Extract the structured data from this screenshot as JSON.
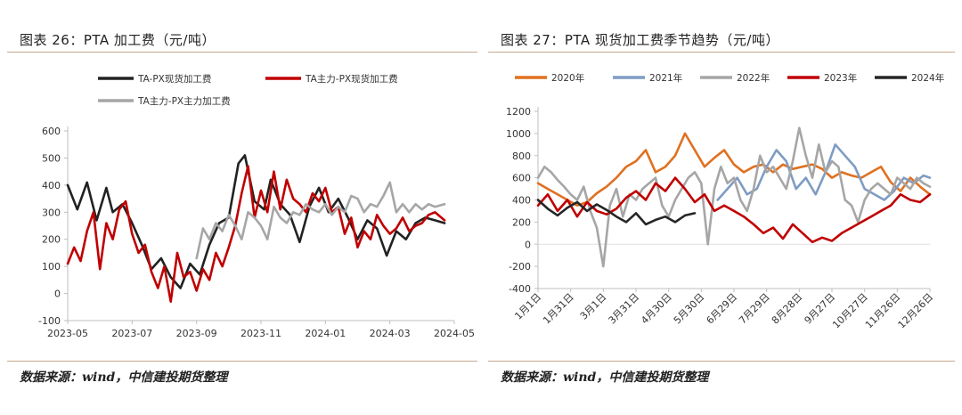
{
  "figures": [
    {
      "title": "图表 26：PTA 加工费（元/吨）",
      "source": "数据来源：wind，中信建投期货整理"
    },
    {
      "title": "图表 27：PTA 现货加工费季节趋势（元/吨）",
      "source": "数据来源：wind，中信建投期货整理"
    }
  ],
  "chart_data": [
    {
      "type": "line",
      "title": "图表 26：PTA 加工费（元/吨）",
      "xlabel": "",
      "ylabel": "",
      "x_tick_labels": [
        "2023-05",
        "2023-07",
        "2023-09",
        "2023-11",
        "2024-01",
        "2024-03",
        "2024-05"
      ],
      "y_ticks": [
        -100,
        0,
        100,
        200,
        300,
        400,
        500,
        600
      ],
      "ylim": [
        -100,
        600
      ],
      "xlim": [
        0,
        12
      ],
      "grid": false,
      "legend": "top",
      "series": [
        {
          "name": "TA-PX现货加工费",
          "color": "#222222",
          "x": [
            0.0,
            0.3,
            0.6,
            0.9,
            1.2,
            1.4,
            1.7,
            2.0,
            2.3,
            2.6,
            2.9,
            3.2,
            3.5,
            3.8,
            4.1,
            4.4,
            4.7,
            5.0,
            5.3,
            5.5,
            5.8,
            6.1,
            6.3,
            6.6,
            6.9,
            7.2,
            7.5,
            7.8,
            8.1,
            8.4,
            8.7,
            9.0,
            9.3,
            9.6,
            9.9,
            10.2,
            10.5,
            10.8,
            11.1,
            11.4,
            11.7
          ],
          "y": [
            400,
            310,
            410,
            270,
            390,
            300,
            330,
            260,
            180,
            90,
            130,
            60,
            20,
            110,
            70,
            180,
            260,
            280,
            480,
            510,
            340,
            310,
            420,
            330,
            290,
            190,
            320,
            390,
            300,
            350,
            280,
            200,
            270,
            240,
            140,
            230,
            200,
            260,
            280,
            270,
            260
          ]
        },
        {
          "name": "TA主力-PX现货加工费",
          "color": "#c00000",
          "x": [
            0.0,
            0.2,
            0.4,
            0.6,
            0.8,
            1.0,
            1.2,
            1.4,
            1.6,
            1.8,
            2.0,
            2.2,
            2.4,
            2.6,
            2.8,
            3.0,
            3.2,
            3.4,
            3.6,
            3.8,
            4.0,
            4.2,
            4.4,
            4.6,
            4.8,
            5.0,
            5.2,
            5.4,
            5.6,
            5.8,
            6.0,
            6.2,
            6.4,
            6.6,
            6.8,
            7.0,
            7.2,
            7.4,
            7.6,
            7.8,
            8.0,
            8.2,
            8.4,
            8.6,
            8.8,
            9.0,
            9.2,
            9.4,
            9.6,
            9.8,
            10.0,
            10.2,
            10.4,
            10.6,
            10.8,
            11.0,
            11.2,
            11.4,
            11.7
          ],
          "y": [
            110,
            170,
            120,
            230,
            300,
            90,
            260,
            200,
            310,
            340,
            220,
            150,
            180,
            80,
            20,
            100,
            -30,
            150,
            60,
            80,
            10,
            90,
            50,
            150,
            100,
            170,
            250,
            370,
            470,
            280,
            380,
            300,
            450,
            310,
            420,
            350,
            330,
            300,
            370,
            340,
            390,
            300,
            320,
            220,
            280,
            170,
            230,
            200,
            290,
            250,
            220,
            240,
            280,
            230,
            250,
            260,
            290,
            300,
            270
          ]
        },
        {
          "name": "TA主力-PX主力加工费",
          "color": "#a6a6a6",
          "x": [
            4.0,
            4.2,
            4.4,
            4.6,
            4.8,
            5.0,
            5.2,
            5.4,
            5.6,
            5.8,
            6.0,
            6.2,
            6.4,
            6.6,
            6.8,
            7.0,
            7.2,
            7.4,
            7.6,
            7.8,
            8.0,
            8.2,
            8.4,
            8.6,
            8.8,
            9.0,
            9.2,
            9.4,
            9.6,
            9.8,
            10.0,
            10.2,
            10.4,
            10.6,
            10.8,
            11.0,
            11.2,
            11.4,
            11.7
          ],
          "y": [
            130,
            240,
            200,
            260,
            230,
            290,
            250,
            200,
            300,
            280,
            250,
            200,
            320,
            280,
            260,
            300,
            290,
            330,
            310,
            300,
            330,
            290,
            320,
            300,
            360,
            350,
            300,
            330,
            320,
            360,
            410,
            300,
            330,
            300,
            330,
            310,
            330,
            320,
            330
          ]
        }
      ]
    },
    {
      "type": "line",
      "title": "图表 27：PTA 现货加工费季节趋势（元/吨）",
      "xlabel": "",
      "ylabel": "",
      "x_tick_labels": [
        "1月1日",
        "1月31日",
        "3月1日",
        "3月31日",
        "4月30日",
        "5月30日",
        "6月29日",
        "7月29日",
        "8月28日",
        "9月27日",
        "10月27日",
        "11月26日",
        "12月26日"
      ],
      "y_ticks": [
        -400,
        -200,
        0,
        200,
        400,
        600,
        800,
        1000,
        1200
      ],
      "ylim": [
        -400,
        1200
      ],
      "xlim": [
        0,
        12
      ],
      "grid": false,
      "legend": "top",
      "series": [
        {
          "name": "2020年",
          "color": "#e07020",
          "x": [
            0.0,
            0.3,
            0.6,
            0.9,
            1.2,
            1.5,
            1.8,
            2.1,
            2.4,
            2.7,
            3.0,
            3.3,
            3.6,
            3.9,
            4.2,
            4.5,
            4.8,
            5.1,
            5.4,
            5.7,
            6.0,
            6.3,
            6.6,
            6.9,
            7.2,
            7.5,
            7.8,
            8.1,
            8.4,
            8.7,
            9.0,
            9.3,
            9.6,
            9.9,
            10.2,
            10.5,
            10.8,
            11.1,
            11.4,
            11.7,
            12.0
          ],
          "y": [
            550,
            500,
            450,
            400,
            350,
            380,
            460,
            520,
            600,
            700,
            750,
            850,
            650,
            700,
            800,
            1000,
            850,
            700,
            780,
            850,
            720,
            650,
            700,
            720,
            650,
            720,
            680,
            700,
            720,
            680,
            600,
            650,
            620,
            600,
            650,
            700,
            560,
            480,
            600,
            520,
            450
          ]
        },
        {
          "name": "2021年",
          "color": "#7f9cc3",
          "x": [
            5.5,
            5.8,
            6.1,
            6.4,
            6.7,
            7.0,
            7.3,
            7.6,
            7.9,
            8.2,
            8.5,
            8.8,
            9.1,
            9.4,
            9.7,
            10.0,
            10.3,
            10.6,
            10.9,
            11.2,
            11.5,
            11.8,
            12.0
          ],
          "y": [
            400,
            500,
            600,
            450,
            500,
            700,
            850,
            750,
            500,
            600,
            450,
            650,
            900,
            800,
            700,
            500,
            450,
            400,
            480,
            600,
            550,
            620,
            600
          ]
        },
        {
          "name": "2022年",
          "color": "#a6a6a6",
          "x": [
            0.0,
            0.2,
            0.4,
            0.6,
            0.8,
            1.0,
            1.2,
            1.4,
            1.6,
            1.8,
            2.0,
            2.2,
            2.4,
            2.6,
            2.8,
            3.0,
            3.2,
            3.4,
            3.6,
            3.8,
            4.0,
            4.2,
            4.4,
            4.6,
            4.8,
            5.0,
            5.2,
            5.4,
            5.6,
            5.8,
            6.0,
            6.2,
            6.4,
            6.6,
            6.8,
            7.0,
            7.2,
            7.4,
            7.6,
            7.8,
            8.0,
            8.2,
            8.4,
            8.6,
            8.8,
            9.0,
            9.2,
            9.4,
            9.6,
            9.8,
            10.0,
            10.2,
            10.4,
            10.6,
            10.8,
            11.0,
            11.2,
            11.4,
            11.6,
            11.8,
            12.0
          ],
          "y": [
            600,
            700,
            650,
            580,
            520,
            450,
            400,
            520,
            300,
            150,
            -200,
            350,
            500,
            250,
            450,
            400,
            500,
            550,
            600,
            350,
            250,
            400,
            500,
            600,
            650,
            550,
            0,
            500,
            700,
            550,
            600,
            400,
            300,
            500,
            800,
            650,
            700,
            600,
            500,
            750,
            1050,
            800,
            600,
            900,
            650,
            750,
            700,
            400,
            350,
            200,
            400,
            500,
            550,
            500,
            450,
            600,
            550,
            500,
            600,
            550,
            520
          ]
        },
        {
          "name": "2023年",
          "color": "#c00000",
          "x": [
            0.0,
            0.3,
            0.6,
            0.9,
            1.2,
            1.5,
            1.8,
            2.1,
            2.4,
            2.7,
            3.0,
            3.3,
            3.6,
            3.9,
            4.2,
            4.5,
            4.8,
            5.1,
            5.4,
            5.7,
            6.0,
            6.3,
            6.6,
            6.9,
            7.2,
            7.5,
            7.8,
            8.1,
            8.4,
            8.7,
            9.0,
            9.3,
            9.6,
            9.9,
            10.2,
            10.5,
            10.8,
            11.1,
            11.4,
            11.7,
            12.0
          ],
          "y": [
            350,
            450,
            300,
            400,
            250,
            380,
            300,
            270,
            320,
            420,
            480,
            400,
            550,
            480,
            600,
            500,
            380,
            450,
            300,
            350,
            300,
            250,
            180,
            100,
            150,
            50,
            180,
            100,
            20,
            60,
            30,
            100,
            150,
            200,
            250,
            300,
            350,
            450,
            400,
            380,
            450
          ]
        },
        {
          "name": "2024年",
          "color": "#262626",
          "x": [
            0.0,
            0.3,
            0.6,
            0.9,
            1.2,
            1.5,
            1.8,
            2.1,
            2.4,
            2.7,
            3.0,
            3.3,
            3.6,
            3.9,
            4.2,
            4.5,
            4.8
          ],
          "y": [
            400,
            320,
            260,
            330,
            380,
            300,
            360,
            310,
            250,
            200,
            280,
            180,
            220,
            250,
            200,
            260,
            280
          ]
        }
      ]
    }
  ]
}
